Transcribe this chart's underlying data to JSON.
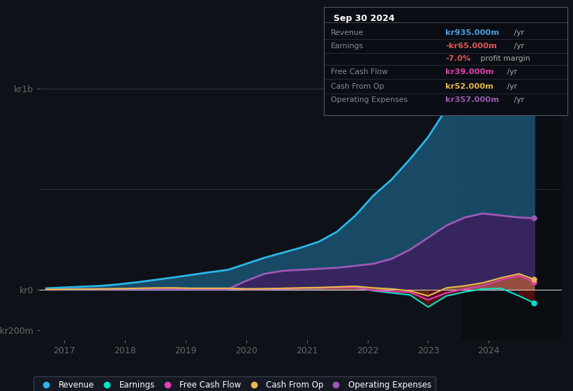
{
  "background_color": "#0e1218",
  "plot_bg_color": "#0e1218",
  "ylim": [
    -250,
    1150
  ],
  "xlim": [
    2016.6,
    2025.2
  ],
  "xtick_years": [
    2017,
    2018,
    2019,
    2020,
    2021,
    2022,
    2023,
    2024
  ],
  "ytick_vals": [
    -200,
    0,
    1000
  ],
  "ytick_labels": [
    "-kr200m",
    "kr0",
    "kr1b"
  ],
  "series": {
    "revenue": {
      "color": "#29b6e8",
      "fill_color": "#1a506e",
      "label": "Revenue",
      "x": [
        2016.7,
        2017.0,
        2017.3,
        2017.6,
        2017.9,
        2018.2,
        2018.5,
        2018.8,
        2019.1,
        2019.4,
        2019.7,
        2020.0,
        2020.3,
        2020.6,
        2020.9,
        2021.2,
        2021.5,
        2021.8,
        2022.1,
        2022.4,
        2022.7,
        2023.0,
        2023.3,
        2023.6,
        2023.9,
        2024.2,
        2024.5,
        2024.75
      ],
      "y": [
        8,
        12,
        16,
        20,
        28,
        38,
        50,
        62,
        75,
        88,
        100,
        130,
        160,
        185,
        210,
        240,
        290,
        370,
        470,
        550,
        650,
        760,
        900,
        980,
        1020,
        990,
        960,
        935
      ]
    },
    "operating_expenses": {
      "color": "#9b59b6",
      "fill_color": "#3d1f5e",
      "label": "Operating Expenses",
      "x": [
        2016.7,
        2017.0,
        2017.3,
        2017.6,
        2017.9,
        2018.2,
        2018.5,
        2018.8,
        2019.1,
        2019.4,
        2019.7,
        2020.0,
        2020.3,
        2020.6,
        2020.9,
        2021.2,
        2021.5,
        2021.8,
        2022.1,
        2022.4,
        2022.7,
        2023.0,
        2023.3,
        2023.6,
        2023.9,
        2024.2,
        2024.5,
        2024.75
      ],
      "y": [
        3,
        4,
        4,
        4,
        4,
        4,
        4,
        4,
        4,
        4,
        4,
        45,
        80,
        95,
        100,
        105,
        110,
        120,
        130,
        155,
        200,
        260,
        320,
        360,
        380,
        370,
        360,
        357
      ]
    },
    "earnings": {
      "color": "#00e5cc",
      "fill_color_pos": "#003333",
      "fill_color_neg": "#5a1010",
      "label": "Earnings",
      "x": [
        2016.7,
        2017.0,
        2017.3,
        2017.6,
        2017.9,
        2018.2,
        2018.5,
        2018.8,
        2019.1,
        2019.4,
        2019.7,
        2020.0,
        2020.3,
        2020.6,
        2020.9,
        2021.2,
        2021.5,
        2021.8,
        2022.1,
        2022.4,
        2022.7,
        2023.0,
        2023.3,
        2023.6,
        2023.9,
        2024.2,
        2024.5,
        2024.75
      ],
      "y": [
        2,
        3,
        4,
        4,
        5,
        6,
        7,
        8,
        8,
        8,
        8,
        5,
        5,
        5,
        8,
        10,
        12,
        15,
        -5,
        -15,
        -25,
        -85,
        -30,
        -10,
        5,
        8,
        -30,
        -65
      ]
    },
    "free_cash_flow": {
      "color": "#e040b0",
      "fill_color_pos": "#5a0a40",
      "fill_color_neg": "#5a0a2a",
      "label": "Free Cash Flow",
      "x": [
        2016.7,
        2017.0,
        2017.3,
        2017.6,
        2017.9,
        2018.2,
        2018.5,
        2018.8,
        2019.1,
        2019.4,
        2019.7,
        2020.0,
        2020.3,
        2020.6,
        2020.9,
        2021.2,
        2021.5,
        2021.8,
        2022.1,
        2022.4,
        2022.7,
        2023.0,
        2023.3,
        2023.6,
        2023.9,
        2024.2,
        2024.5,
        2024.75
      ],
      "y": [
        2,
        3,
        4,
        4,
        5,
        6,
        7,
        8,
        7,
        6,
        5,
        3,
        3,
        5,
        8,
        10,
        12,
        12,
        -3,
        -8,
        -12,
        -50,
        -15,
        5,
        20,
        50,
        70,
        39
      ]
    },
    "cash_from_op": {
      "color": "#e8b84b",
      "fill_color_pos": "#4a3000",
      "fill_color_neg": "#4a2000",
      "label": "Cash From Op",
      "x": [
        2016.7,
        2017.0,
        2017.3,
        2017.6,
        2017.9,
        2018.2,
        2018.5,
        2018.8,
        2019.1,
        2019.4,
        2019.7,
        2020.0,
        2020.3,
        2020.6,
        2020.9,
        2021.2,
        2021.5,
        2021.8,
        2022.1,
        2022.4,
        2022.7,
        2023.0,
        2023.3,
        2023.6,
        2023.9,
        2024.2,
        2024.5,
        2024.75
      ],
      "y": [
        2,
        3,
        4,
        5,
        6,
        8,
        10,
        10,
        8,
        8,
        8,
        5,
        6,
        8,
        10,
        12,
        15,
        18,
        10,
        5,
        -5,
        -30,
        10,
        20,
        35,
        60,
        80,
        52
      ]
    }
  },
  "info_box": {
    "date": "Sep 30 2024",
    "rows": [
      {
        "label": "Revenue",
        "value": "kr935.000m",
        "value_color": "#4e9fde",
        "suffix": " /yr"
      },
      {
        "label": "Earnings",
        "value": "-kr65.000m",
        "value_color": "#e05555",
        "suffix": " /yr"
      },
      {
        "label": "",
        "value": "-7.0%",
        "value_color": "#e05555",
        "suffix2_color": "#aaaaaa",
        "suffix": " profit margin"
      },
      {
        "label": "Free Cash Flow",
        "value": "kr39.000m",
        "value_color": "#e040b0",
        "suffix": " /yr"
      },
      {
        "label": "Cash From Op",
        "value": "kr52.000m",
        "value_color": "#e8b84b",
        "suffix": " /yr"
      },
      {
        "label": "Operating Expenses",
        "value": "kr357.000m",
        "value_color": "#9b59b6",
        "suffix": " /yr"
      }
    ]
  },
  "legend_items": [
    {
      "label": "Revenue",
      "color": "#29b6e8"
    },
    {
      "label": "Earnings",
      "color": "#00e5cc"
    },
    {
      "label": "Free Cash Flow",
      "color": "#e040b0"
    },
    {
      "label": "Cash From Op",
      "color": "#e8b84b"
    },
    {
      "label": "Operating Expenses",
      "color": "#9b59b6"
    }
  ],
  "grid_lines": [
    0,
    500,
    1000
  ],
  "zero_line_color": "#cccccc"
}
